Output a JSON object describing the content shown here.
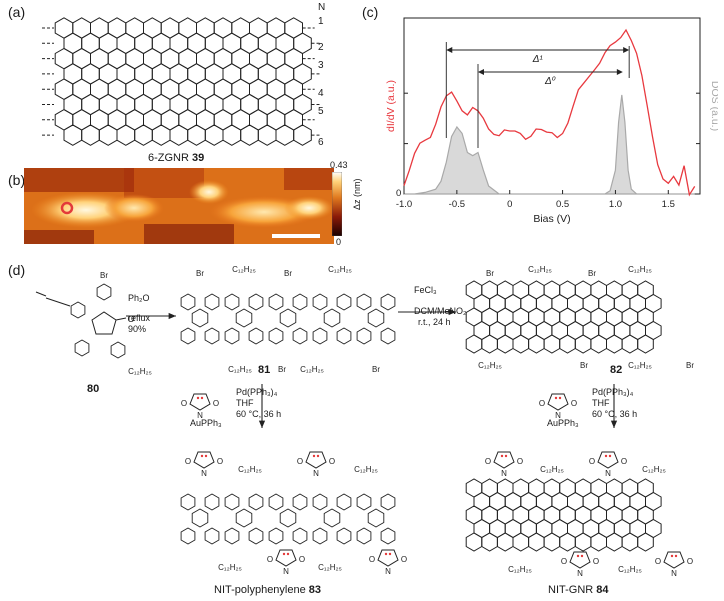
{
  "panels": {
    "a": {
      "label": "(a)",
      "n_label": "N",
      "row_numbers": [
        "1",
        "2",
        "3",
        "4",
        "5",
        "6"
      ],
      "caption_text": "6-ZGNR",
      "caption_number": "39"
    },
    "b": {
      "label": "(b)",
      "scale_max": "0.43",
      "scale_min": "0",
      "scale_unit": "Δz (nm)"
    },
    "c": {
      "label": "(c)",
      "ylabel_left": "dI/dV (a.u.)",
      "ylabel_right": "DOS (a.u.)",
      "xlabel": "Bias (V)",
      "delta1_label": "Δ¹",
      "delta0_label": "Δ⁰",
      "y_tick_zero": "0",
      "colors": {
        "didv": "#e8393f",
        "dos": "#a9a9a9"
      }
    },
    "d": {
      "label": "(d)",
      "step1": {
        "reagent": "Ph₂O",
        "condition": "reflux",
        "yield": "90%"
      },
      "step2": {
        "reagent": "FeCl₃",
        "solvent": "DCM/MeNO₂",
        "condition": "r.t., 24 h"
      },
      "step3": {
        "reagent": "Pd(PPh₃)₄",
        "solvent": "THF",
        "condition": "60 °C, 36 h",
        "au_reagent": "AuPPh₃"
      },
      "compounds": {
        "c80": "80",
        "c81": "81",
        "c82": "82",
        "c83_name": "NIT-polyphenylene",
        "c83": "83",
        "c84_name": "NIT-GNR",
        "c84": "84"
      },
      "substituents": {
        "br": "Br",
        "alkyl": "C₁₂H₂₅",
        "o": "O",
        "n": "N"
      }
    }
  },
  "chart_data": {
    "type": "line",
    "title": "",
    "xlabel": "Bias (V)",
    "ylabel": "dI/dV (a.u.)",
    "y2label": "DOS (a.u.)",
    "xlim": [
      -1.0,
      1.8
    ],
    "x_ticks": [
      -1.0,
      -0.5,
      0,
      0.5,
      1.0,
      1.5
    ],
    "annotations": [
      {
        "label": "Δ¹",
        "from": -0.6,
        "to": 1.13
      },
      {
        "label": "Δ⁰",
        "from": -0.3,
        "to": 1.07
      }
    ],
    "series": [
      {
        "name": "dI/dV (a.u.)",
        "x": [
          -1.0,
          -0.95,
          -0.9,
          -0.85,
          -0.8,
          -0.75,
          -0.7,
          -0.65,
          -0.6,
          -0.55,
          -0.5,
          -0.45,
          -0.4,
          -0.35,
          -0.3,
          -0.25,
          -0.2,
          -0.15,
          -0.1,
          -0.05,
          0.0,
          0.05,
          0.1,
          0.15,
          0.2,
          0.25,
          0.3,
          0.35,
          0.4,
          0.45,
          0.5,
          0.55,
          0.6,
          0.65,
          0.7,
          0.75,
          0.8,
          0.85,
          0.9,
          0.95,
          1.0,
          1.05,
          1.1,
          1.15,
          1.2,
          1.25,
          1.3,
          1.35,
          1.4,
          1.45,
          1.5,
          1.55,
          1.6,
          1.65,
          1.7,
          1.75
        ],
        "values": [
          0.05,
          0.12,
          0.22,
          0.3,
          0.34,
          0.36,
          0.42,
          0.5,
          0.56,
          0.6,
          0.57,
          0.52,
          0.48,
          0.5,
          0.47,
          0.44,
          0.4,
          0.38,
          0.36,
          0.37,
          0.35,
          0.36,
          0.37,
          0.35,
          0.36,
          0.38,
          0.36,
          0.35,
          0.37,
          0.36,
          0.38,
          0.42,
          0.5,
          0.6,
          0.66,
          0.72,
          0.76,
          0.78,
          0.82,
          0.86,
          0.9,
          0.95,
          1.0,
          0.92,
          0.82,
          0.68,
          0.52,
          0.36,
          0.2,
          0.1,
          0.05,
          0.08,
          0.04,
          0.18,
          0.02,
          0.06
        ]
      },
      {
        "name": "DOS (a.u.)",
        "x": [
          -1.0,
          -0.9,
          -0.8,
          -0.7,
          -0.65,
          -0.6,
          -0.55,
          -0.5,
          -0.45,
          -0.4,
          -0.35,
          -0.3,
          -0.25,
          -0.2,
          -0.1,
          0.0,
          0.5,
          0.9,
          0.95,
          1.0,
          1.03,
          1.06,
          1.09,
          1.12,
          1.15,
          1.2,
          1.3,
          1.5,
          1.75
        ],
        "values": [
          0.0,
          0.0,
          0.01,
          0.03,
          0.08,
          0.2,
          0.36,
          0.42,
          0.38,
          0.26,
          0.24,
          0.26,
          0.15,
          0.05,
          0.0,
          0.0,
          0.0,
          0.0,
          0.02,
          0.15,
          0.45,
          0.62,
          0.45,
          0.15,
          0.03,
          0.0,
          0.0,
          0.0,
          0.0
        ]
      }
    ]
  }
}
